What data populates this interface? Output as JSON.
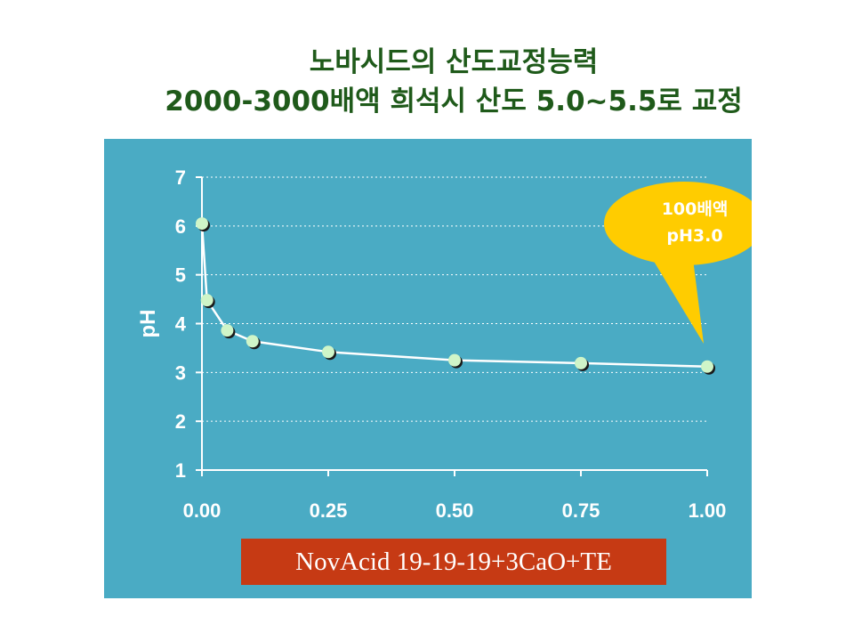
{
  "title": {
    "line1": "노바시드의 산도교정능력",
    "line2": "2000-3000배액 희석시 산도 5.0~5.5로 교정"
  },
  "colors": {
    "title": "#1f5a1a",
    "panel": "#4aabc4",
    "line": "#ffffff",
    "marker": "#cff5c8",
    "legend_bg": "#c63a14",
    "callout": "#ffcc00"
  },
  "legend": {
    "label": "NovAcid 19-19-19+3CaO+TE"
  },
  "callout": {
    "line1": "100배액",
    "line2": "pH3.0"
  },
  "chart_data": {
    "type": "line",
    "title": "",
    "xlabel": "",
    "ylabel": "pH",
    "xlim": [
      0,
      1
    ],
    "ylim": [
      1,
      7
    ],
    "xticks": [
      "0.00",
      "0.25",
      "0.50",
      "0.75",
      "1.00"
    ],
    "yticks": [
      "1",
      "2",
      "3",
      "4",
      "5",
      "6",
      "7"
    ],
    "grid": "horizontal dotted",
    "series": [
      {
        "name": "NovAcid 19-19-19+3CaO+TE",
        "x": [
          0.0,
          0.01,
          0.05,
          0.1,
          0.25,
          0.5,
          0.75,
          1.0
        ],
        "y": [
          6.05,
          4.48,
          3.86,
          3.64,
          3.42,
          3.25,
          3.19,
          3.12
        ]
      }
    ]
  }
}
